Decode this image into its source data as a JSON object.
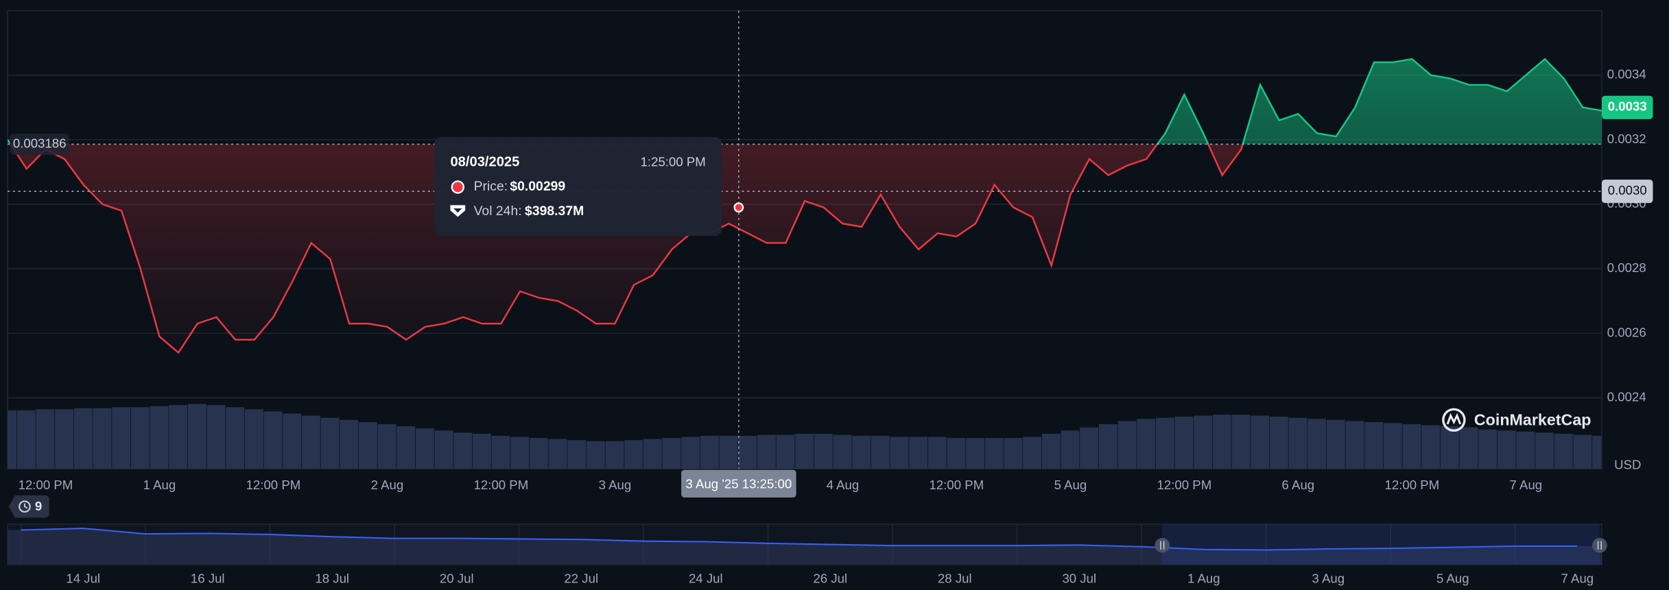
{
  "chart_data": {
    "type": "line",
    "categories": [
      null,
      null,
      "12:00 PM",
      null,
      null,
      null,
      null,
      null,
      "1 Aug",
      null,
      null,
      null,
      null,
      null,
      "12:00 PM",
      null,
      null,
      null,
      null,
      null,
      "2 Aug",
      null,
      null,
      null,
      null,
      null,
      "12:00 PM",
      null,
      null,
      null,
      null,
      null,
      "3 Aug",
      null,
      null,
      null,
      null,
      null,
      null,
      null,
      null,
      null,
      null,
      null,
      "4 Aug",
      null,
      null,
      null,
      null,
      null,
      "12:00 PM",
      null,
      null,
      null,
      null,
      null,
      "5 Aug",
      null,
      null,
      null,
      null,
      null,
      "12:00 PM",
      null,
      null,
      null,
      null,
      null,
      "6 Aug",
      null,
      null,
      null,
      null,
      null,
      "12:00 PM",
      null,
      null,
      null,
      null,
      null,
      "7 Aug",
      null,
      null,
      null,
      null
    ],
    "series": [
      {
        "values": [
          0.0032,
          0.00311,
          0.00317,
          0.00314,
          0.00306,
          0.003,
          0.00298,
          0.0028,
          0.00259,
          0.00254,
          0.00263,
          0.00265,
          0.00258,
          0.00258,
          0.00265,
          0.00276,
          0.00288,
          0.00283,
          0.00263,
          0.00263,
          0.00262,
          0.00258,
          0.00262,
          0.00263,
          0.00265,
          0.00263,
          0.00263,
          0.00273,
          0.00271,
          0.0027,
          0.00267,
          0.00263,
          0.00263,
          0.00275,
          0.00278,
          0.00286,
          0.00291,
          0.00291,
          0.00294,
          0.00291,
          0.00288,
          0.00288,
          0.00301,
          0.00299,
          0.00294,
          0.00293,
          0.00303,
          0.00293,
          0.00286,
          0.00291,
          0.0029,
          0.00294,
          0.00306,
          0.00299,
          0.00296,
          0.00281,
          0.00303,
          0.00314,
          0.00309,
          0.00312,
          0.00314,
          0.00322,
          0.00334,
          0.00322,
          0.00309,
          0.00317,
          0.00337,
          0.00326,
          0.00328,
          0.00322,
          0.00321,
          0.0033,
          0.00344,
          0.00344,
          0.00345,
          0.0034,
          0.00339,
          0.00337,
          0.00337,
          0.00335,
          0.0034,
          0.00345,
          0.00339,
          0.0033,
          0.00329
        ]
      }
    ],
    "up_color": "#16c784",
    "down_color": "#ea3943",
    "baseline": 0.003186,
    "volume": {
      "color": "#2b3757",
      "values": [
        707000000,
        707000000,
        720000000,
        720000000,
        732000000,
        732000000,
        745000000,
        745000000,
        758000000,
        771000000,
        784000000,
        771000000,
        745000000,
        720000000,
        694000000,
        668000000,
        643000000,
        617000000,
        591000000,
        565000000,
        540000000,
        514000000,
        488000000,
        463000000,
        437000000,
        424000000,
        398000000,
        386000000,
        373000000,
        360000000,
        347000000,
        334000000,
        334000000,
        347000000,
        360000000,
        373000000,
        386000000,
        398000000,
        398000000,
        398000000,
        411000000,
        411000000,
        424000000,
        424000000,
        411000000,
        398000000,
        398000000,
        386000000,
        386000000,
        386000000,
        373000000,
        373000000,
        373000000,
        373000000,
        386000000,
        424000000,
        463000000,
        501000000,
        540000000,
        578000000,
        604000000,
        617000000,
        630000000,
        643000000,
        655000000,
        655000000,
        643000000,
        630000000,
        617000000,
        604000000,
        591000000,
        578000000,
        565000000,
        553000000,
        540000000,
        527000000,
        514000000,
        501000000,
        475000000,
        463000000,
        450000000,
        437000000,
        424000000,
        411000000,
        398000000
      ]
    },
    "ylim": [
      0.00218,
      0.0036
    ],
    "yticks": [
      0.0024,
      0.0026,
      0.0028,
      {
        "value": 0.003,
        "label": "0.0030"
      },
      0.0032,
      0.0034
    ],
    "grid": true,
    "last_price": {
      "value": 0.0033,
      "label": "0.0033"
    },
    "hover_y": {
      "value": 0.00304,
      "label": "0.0030"
    },
    "hover_x_label": "3 Aug '25 13:25:00",
    "tooltip": {
      "date": "08/03/2025",
      "time": "1:25:00 PM",
      "price_label": "Price:",
      "price": {
        "value": 0.00299,
        "label": "$0.00299"
      },
      "volume_label": "Vol 24h:",
      "volume": {
        "value": 398370000,
        "label": "$398.37M"
      }
    },
    "currency": "USD",
    "brand": "CoinMarketCap",
    "badge": "9",
    "navigator": {
      "categories": [
        null,
        "14 Jul",
        null,
        "16 Jul",
        null,
        "18 Jul",
        null,
        "20 Jul",
        null,
        "22 Jul",
        null,
        "24 Jul",
        null,
        "26 Jul",
        null,
        "28 Jul",
        null,
        "30 Jul",
        null,
        "1 Aug",
        null,
        "3 Aug",
        null,
        "5 Aug",
        null,
        "7 Aug"
      ],
      "color": "#3861fb",
      "values": [
        0.0062,
        0.0065,
        0.0055,
        0.0056,
        0.0054,
        0.005,
        0.0047,
        0.0047,
        0.0046,
        0.0045,
        0.0042,
        0.0041,
        0.0038,
        0.0036,
        0.0034,
        0.0034,
        0.0034,
        0.0035,
        0.0032,
        0.0027,
        0.0026,
        0.0028,
        0.0029,
        0.0031,
        0.0033,
        0.0033
      ]
    }
  }
}
